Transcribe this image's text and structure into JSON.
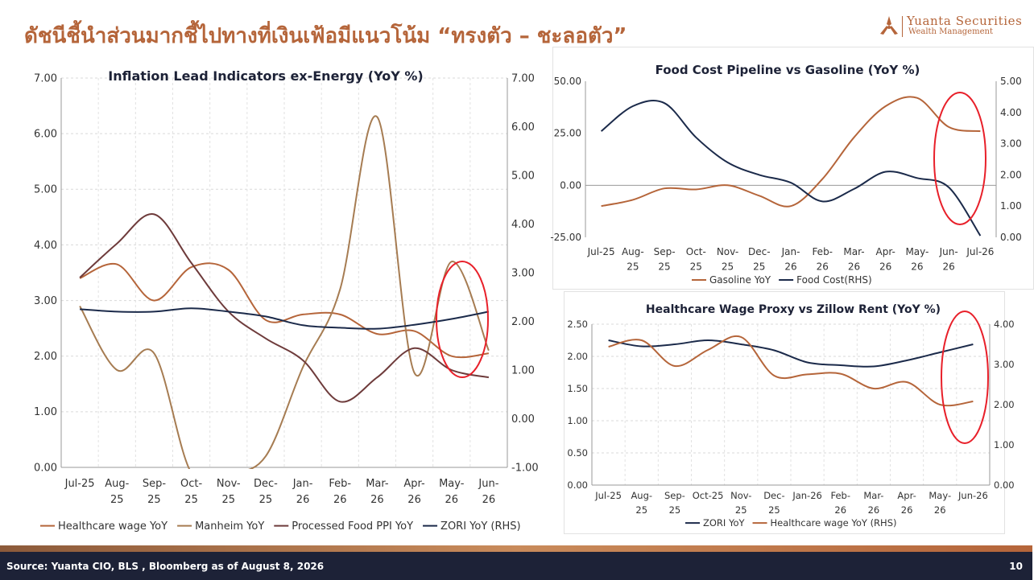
{
  "slide": {
    "title": "ดัชนีชี้นำส่วนมากชี้ไปทางที่เงินเฟ้อมีแนวโน้ม “ทรงตัว – ชะลอตัว”",
    "brand_name": "Yuanta Securities",
    "brand_sub": "Wealth Management",
    "source": "Source: Yuanta CIO, BLS , Bloomberg as of August 8, 2026",
    "page_number": "10"
  },
  "colors": {
    "title": "#B5653A",
    "footer": "#1D2237",
    "highlight_ellipse": "#E8202A",
    "healthcare": "#B5653A",
    "manheim": "#A67C52",
    "processed_food": "#6E3B3B",
    "zori": "#1B2A4A",
    "gasoline": "#B5653A",
    "food_cost": "#1B2A4A"
  },
  "chart_data": [
    {
      "type": "line",
      "title": "Inflation Lead Indicators ex-Energy (YoY %)",
      "categories": [
        "Jul-25",
        "Aug-25",
        "Sep-25",
        "Oct-25",
        "Nov-25",
        "Dec-25",
        "Jan-26",
        "Feb-26",
        "Mar-26",
        "Apr-26",
        "May-26",
        "Jun-26"
      ],
      "y_left": {
        "range": [
          0,
          7
        ],
        "ticks": [
          "0.00",
          "1.00",
          "2.00",
          "3.00",
          "4.00",
          "5.00",
          "6.00",
          "7.00"
        ]
      },
      "y_right": {
        "range": [
          -1,
          7
        ],
        "ticks": [
          "-1.00",
          "0.00",
          "1.00",
          "2.00",
          "3.00",
          "4.00",
          "5.00",
          "6.00",
          "7.00"
        ]
      },
      "grid": true,
      "legend_position": "bottom",
      "series": [
        {
          "name": "Healthcare wage YoY",
          "axis": "left",
          "color": "#B5653A",
          "values": [
            3.4,
            3.65,
            3.0,
            3.6,
            3.55,
            2.65,
            2.75,
            2.75,
            2.4,
            2.45,
            2.0,
            2.05
          ]
        },
        {
          "name": "Manheim YoY",
          "axis": "left",
          "color": "#A67C52",
          "values": [
            2.9,
            1.75,
            2.05,
            -0.1,
            -0.1,
            0.2,
            1.8,
            3.2,
            6.3,
            1.7,
            3.7,
            2.1
          ]
        },
        {
          "name": "Processed Food PPI YoY",
          "axis": "right",
          "color": "#6E3B3B",
          "values": [
            2.9,
            3.6,
            4.2,
            3.2,
            2.2,
            1.65,
            1.2,
            0.35,
            0.85,
            1.45,
            1.0,
            0.85
          ]
        },
        {
          "name": "ZORI YoY (RHS)",
          "axis": "right",
          "color": "#1B2A4A",
          "values": [
            2.25,
            2.2,
            2.2,
            2.27,
            2.2,
            2.1,
            1.92,
            1.87,
            1.85,
            1.93,
            2.05,
            2.2
          ]
        }
      ]
    },
    {
      "type": "line",
      "title": "Food Cost Pipeline vs Gasoline (YoY %)",
      "categories": [
        "Jul-25",
        "Aug-25",
        "Sep-25",
        "Oct-25",
        "Nov-25",
        "Dec-25",
        "Jan-26",
        "Feb-26",
        "Mar-26",
        "Apr-26",
        "May-26",
        "Jun-26",
        "Jul-26"
      ],
      "y_left": {
        "range": [
          -25,
          50
        ],
        "ticks": [
          "-25.00",
          "0.00",
          "25.00",
          "50.00"
        ]
      },
      "y_right": {
        "range": [
          0,
          5
        ],
        "ticks": [
          "0.00",
          "1.00",
          "2.00",
          "3.00",
          "4.00",
          "5.00"
        ]
      },
      "grid": false,
      "legend_position": "bottom",
      "series": [
        {
          "name": "Gasoline YoY",
          "axis": "left",
          "color": "#B5653A",
          "values": [
            -10,
            -7,
            -1.5,
            -2,
            0,
            -5,
            -10,
            3,
            23,
            38,
            42,
            28,
            26
          ]
        },
        {
          "name": "Food Cost(RHS)",
          "axis": "right",
          "color": "#1B2A4A",
          "values": [
            3.4,
            4.2,
            4.3,
            3.2,
            2.4,
            2.0,
            1.75,
            1.15,
            1.55,
            2.1,
            1.9,
            1.6,
            0.05
          ]
        }
      ]
    },
    {
      "type": "line",
      "title": "Healthcare Wage Proxy vs Zillow Rent (YoY %)",
      "categories": [
        "Jul-25",
        "Aug-25",
        "Sep-25",
        "Oct-25",
        "Nov-25",
        "Dec-25",
        "Jan-26",
        "Feb-26",
        "Mar-26",
        "Apr-26",
        "May-26",
        "Jun-26"
      ],
      "y_left": {
        "range": [
          0,
          2.5
        ],
        "ticks": [
          "0.00",
          "0.50",
          "1.00",
          "1.50",
          "2.00",
          "2.50"
        ]
      },
      "y_right": {
        "range": [
          0,
          4
        ],
        "ticks": [
          "0.00",
          "1.00",
          "2.00",
          "3.00",
          "4.00"
        ]
      },
      "grid": true,
      "legend_position": "bottom",
      "series": [
        {
          "name": "ZORI YoY",
          "axis": "right",
          "color": "#1B2A4A",
          "values": [
            3.6,
            3.45,
            3.5,
            3.6,
            3.5,
            3.35,
            3.05,
            2.98,
            2.95,
            3.1,
            3.3,
            3.5
          ]
        },
        {
          "name": "Healthcare wage YoY (RHS)",
          "axis": "left",
          "color": "#B5653A",
          "values": [
            2.15,
            2.25,
            1.85,
            2.1,
            2.3,
            1.7,
            1.72,
            1.73,
            1.5,
            1.6,
            1.25,
            1.3
          ]
        }
      ]
    }
  ]
}
